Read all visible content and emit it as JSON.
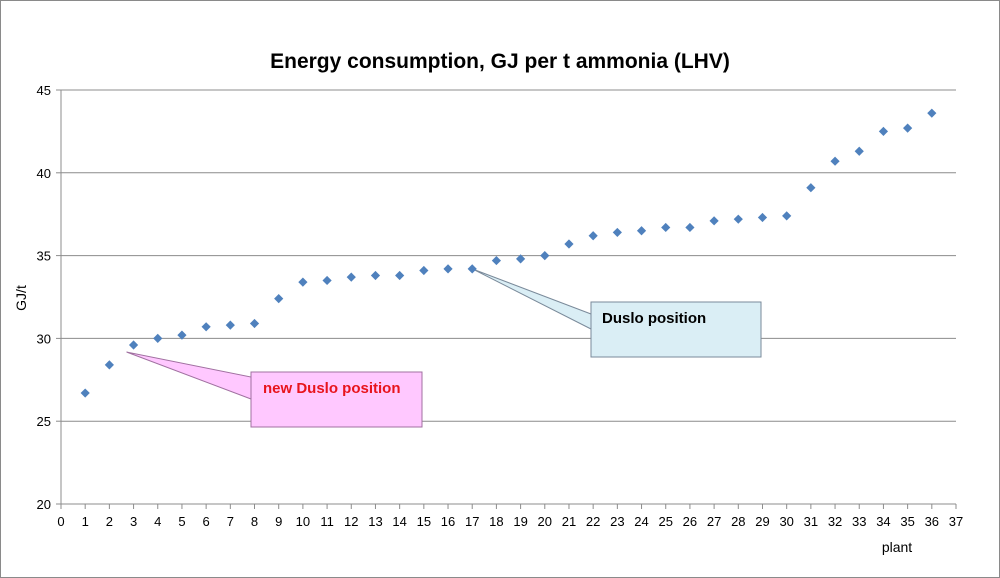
{
  "chart_data": {
    "type": "scatter",
    "title": "Energy consumption, GJ per t ammonia (LHV)",
    "xlabel": "plant",
    "ylabel": "GJ/t",
    "xlim": [
      0,
      37
    ],
    "ylim": [
      20,
      45
    ],
    "xticks": [
      0,
      1,
      2,
      3,
      4,
      5,
      6,
      7,
      8,
      9,
      10,
      11,
      12,
      13,
      14,
      15,
      16,
      17,
      18,
      19,
      20,
      21,
      22,
      23,
      24,
      25,
      26,
      27,
      28,
      29,
      30,
      31,
      32,
      33,
      34,
      35,
      36,
      37
    ],
    "yticks": [
      20,
      25,
      30,
      35,
      40,
      45
    ],
    "grid": "horizontal",
    "marker_color": "#4f81bd",
    "series": [
      {
        "x": [
          1,
          2,
          3,
          4,
          5,
          6,
          7,
          8,
          9,
          10,
          11,
          12,
          13,
          14,
          15,
          16,
          17,
          18,
          19,
          20,
          21,
          22,
          23,
          24,
          25,
          26,
          27,
          28,
          29,
          30,
          31,
          32,
          33,
          34,
          35,
          36
        ],
        "y": [
          26.7,
          28.4,
          29.6,
          30.0,
          30.2,
          30.7,
          30.8,
          30.9,
          32.4,
          33.4,
          33.5,
          33.7,
          33.8,
          33.8,
          34.1,
          34.2,
          34.2,
          34.7,
          34.8,
          35.0,
          35.7,
          36.2,
          36.4,
          36.5,
          36.7,
          36.7,
          37.1,
          37.2,
          37.3,
          37.4,
          39.1,
          40.7,
          41.3,
          42.5,
          42.7,
          43.6
        ]
      }
    ],
    "annotations": [
      {
        "text": "new Duslo position",
        "point": [
          3,
          29.6
        ],
        "text_color": "#e8141c",
        "box_fill": "#ffc8ff",
        "box_stroke": "#a070a0"
      },
      {
        "text": "Duslo position",
        "point": [
          17,
          34.2
        ],
        "text_color": "#000000",
        "box_fill": "#daeef5",
        "box_stroke": "#7a8a9a"
      }
    ]
  }
}
